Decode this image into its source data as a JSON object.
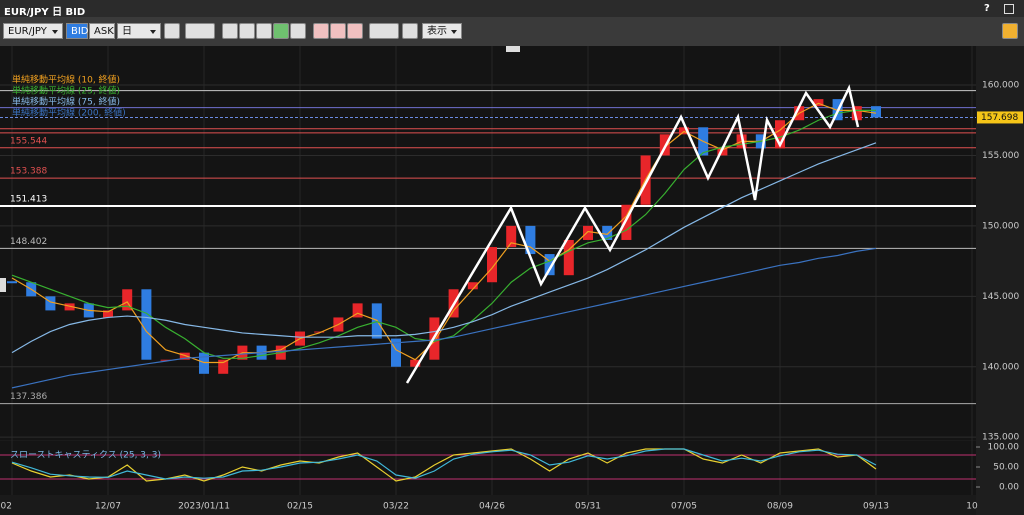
{
  "window": {
    "title": "EUR/JPY 日 BID",
    "help": "?"
  },
  "toolbar": {
    "symbol": "EUR/JPY",
    "bid": "BID",
    "ask": "ASK",
    "period": "日",
    "display": "表示"
  },
  "chart_data": {
    "type": "candlestick",
    "categories": [
      "02",
      null,
      null,
      null,
      null,
      "12/07",
      null,
      null,
      null,
      null,
      "2023/01/11",
      null,
      null,
      null,
      null,
      "02/15",
      null,
      null,
      null,
      null,
      "03/22",
      null,
      null,
      null,
      null,
      "04/26",
      null,
      null,
      null,
      null,
      "05/31",
      null,
      null,
      null,
      null,
      "07/05",
      null,
      null,
      null,
      null,
      "08/09",
      null,
      null,
      null,
      null,
      "09/13",
      null,
      null,
      null,
      null,
      "10"
    ],
    "close": [
      146.0,
      145.0,
      144.0,
      144.5,
      143.5,
      144.0,
      145.5,
      140.5,
      140.5,
      141.0,
      139.5,
      140.5,
      141.5,
      140.5,
      141.5,
      142.5,
      142.5,
      143.5,
      144.5,
      142.0,
      140.0,
      140.5,
      143.5,
      145.5,
      146.0,
      148.5,
      150.0,
      148.0,
      146.5,
      149.0,
      150.0,
      149.0,
      151.5,
      155.0,
      156.5,
      157.0,
      155.0,
      155.5,
      156.5,
      155.5,
      157.5,
      158.5,
      159.0,
      157.5,
      158.5,
      157.7,
      null,
      null,
      null,
      null,
      null
    ],
    "up_color": "#e8262a",
    "down_color": "#2f7de1",
    "series": [
      {
        "name": "単純移動平均線 (10, 終値)",
        "color": "#f0a020",
        "values": [
          146.3,
          145.5,
          144.6,
          144.3,
          144.0,
          143.9,
          144.6,
          142.5,
          141.2,
          140.8,
          140.3,
          140.3,
          141.0,
          141.0,
          141.2,
          142.0,
          142.4,
          143.0,
          143.8,
          143.3,
          141.2,
          140.5,
          141.8,
          144.0,
          145.5,
          147.0,
          148.8,
          148.5,
          147.5,
          148.3,
          149.6,
          149.4,
          150.7,
          153.3,
          155.6,
          156.7,
          156.0,
          155.4,
          156.0,
          156.0,
          156.8,
          158.0,
          158.7,
          158.2,
          158.2,
          158.0,
          null,
          null,
          null,
          null,
          null
        ]
      },
      {
        "name": "単純移動平均線 (25, 終値)",
        "color": "#38b030",
        "values": [
          146.5,
          146.0,
          145.5,
          145.0,
          144.5,
          144.2,
          144.3,
          143.8,
          142.8,
          142.0,
          141.0,
          140.6,
          140.6,
          140.8,
          141.0,
          141.3,
          141.7,
          142.2,
          142.8,
          143.2,
          142.8,
          142.0,
          141.8,
          142.2,
          143.3,
          144.5,
          146.0,
          147.0,
          147.5,
          148.2,
          148.8,
          149.1,
          149.7,
          150.8,
          152.3,
          154.0,
          155.2,
          155.6,
          155.8,
          156.0,
          156.3,
          156.8,
          157.5,
          158.0,
          158.2,
          158.2,
          null,
          null,
          null,
          null,
          null
        ]
      },
      {
        "name": "単純移動平均線 (75, 終値)",
        "color": "#86b8e6",
        "values": [
          141.0,
          141.8,
          142.5,
          143.0,
          143.3,
          143.5,
          143.6,
          143.5,
          143.3,
          143.0,
          142.8,
          142.6,
          142.4,
          142.3,
          142.2,
          142.1,
          142.1,
          142.1,
          142.2,
          142.2,
          142.2,
          142.3,
          142.5,
          142.8,
          143.2,
          143.7,
          144.3,
          144.8,
          145.3,
          145.8,
          146.3,
          146.9,
          147.6,
          148.3,
          149.1,
          149.9,
          150.6,
          151.3,
          152.0,
          152.6,
          153.2,
          153.8,
          154.4,
          154.9,
          155.4,
          155.9,
          null,
          null,
          null,
          null,
          null
        ]
      },
      {
        "name": "単純移動平均線 (200, 終値)",
        "color": "#3a72c0",
        "values": [
          138.5,
          138.8,
          139.1,
          139.4,
          139.6,
          139.8,
          140.0,
          140.2,
          140.4,
          140.6,
          140.7,
          140.8,
          140.9,
          141.0,
          141.1,
          141.2,
          141.3,
          141.4,
          141.5,
          141.6,
          141.7,
          141.8,
          141.9,
          142.1,
          142.4,
          142.7,
          143.0,
          143.3,
          143.6,
          143.9,
          144.2,
          144.5,
          144.8,
          145.1,
          145.4,
          145.7,
          146.0,
          146.3,
          146.6,
          146.9,
          147.2,
          147.4,
          147.7,
          147.9,
          148.2,
          148.4,
          null,
          null,
          null,
          null,
          null
        ]
      }
    ],
    "ylim": [
      134.8,
      162.7
    ],
    "yticks": [
      {
        "value": 135,
        "label": "135.000"
      },
      {
        "value": 140,
        "label": "140.000"
      },
      {
        "value": 145,
        "label": "145.000"
      },
      {
        "value": 150,
        "label": "150.000"
      },
      {
        "value": 155,
        "label": "155.000"
      },
      {
        "value": 160,
        "label": "160.000"
      }
    ],
    "levels": [
      {
        "value": 155.544,
        "color": "#e05050"
      },
      {
        "value": 153.388,
        "color": "#e05050"
      },
      {
        "value": 151.413,
        "color": "#ffffff"
      },
      {
        "value": 148.402,
        "color": "#bbbbbb"
      },
      {
        "value": 137.386,
        "color": "#aaaaaa"
      }
    ],
    "lines": [
      {
        "value": 159.6,
        "color": "#c8c8c8"
      },
      {
        "value": 158.4,
        "color": "#7070d0"
      },
      {
        "value": 156.9,
        "color": "#e05050"
      },
      {
        "value": 156.6,
        "color": "#e05050"
      }
    ],
    "last": 157.698,
    "last_color": "#f5c518",
    "grid": true,
    "indicator": {
      "title": "スローストキャスティクス (25, 3, 3)",
      "ylim": [
        0,
        100
      ],
      "yticks": [
        {
          "value": 0,
          "label": "0.00"
        },
        {
          "value": 50,
          "label": "50.00"
        },
        {
          "value": 100,
          "label": "100.00"
        }
      ],
      "bands": [
        20,
        80
      ],
      "band_color": "#c03070",
      "series": [
        {
          "color": "#e8d030",
          "values": [
            60,
            40,
            25,
            30,
            20,
            25,
            55,
            15,
            20,
            30,
            15,
            30,
            50,
            40,
            55,
            65,
            60,
            75,
            85,
            50,
            15,
            25,
            55,
            80,
            85,
            90,
            95,
            70,
            40,
            70,
            85,
            60,
            85,
            95,
            95,
            95,
            70,
            60,
            80,
            60,
            85,
            90,
            95,
            75,
            80,
            45,
            null,
            null,
            null,
            null,
            null
          ]
        },
        {
          "color": "#40b8d8",
          "values": [
            62,
            48,
            32,
            28,
            25,
            24,
            40,
            30,
            20,
            25,
            22,
            25,
            40,
            42,
            50,
            60,
            62,
            70,
            80,
            65,
            30,
            22,
            40,
            70,
            82,
            88,
            92,
            80,
            55,
            62,
            78,
            70,
            78,
            90,
            95,
            95,
            80,
            65,
            72,
            65,
            78,
            88,
            92,
            82,
            80,
            55,
            null,
            null,
            null,
            null,
            null
          ]
        }
      ]
    }
  }
}
